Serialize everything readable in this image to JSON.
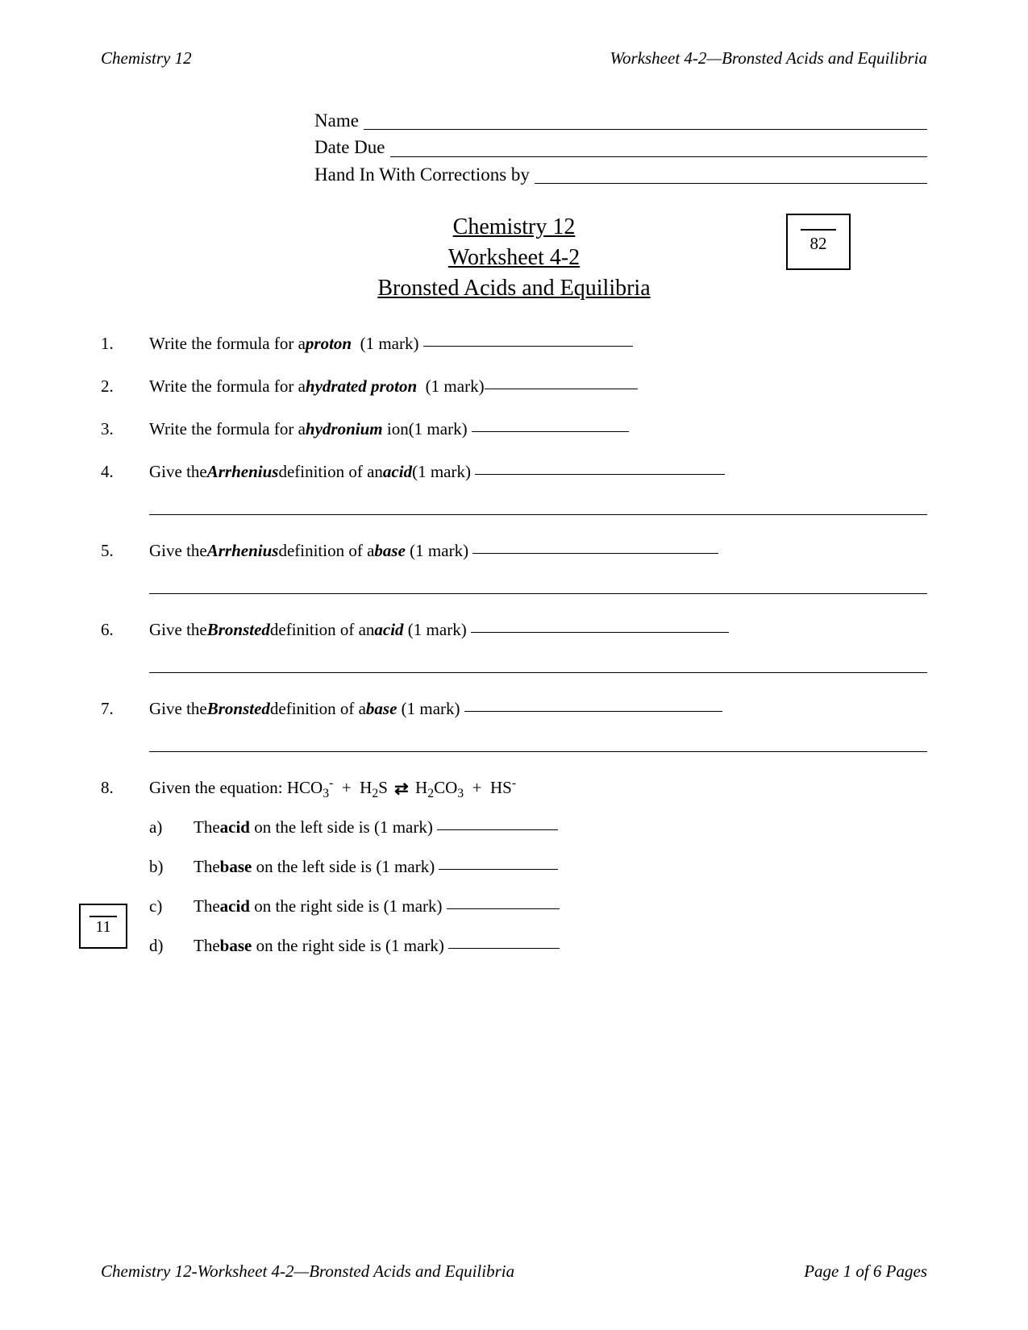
{
  "header": {
    "left": "Chemistry 12",
    "right": "Worksheet 4-2—Bronsted Acids and Equilibria"
  },
  "nameBlock": {
    "nameLabel": "Name ",
    "dueLabel": "Date Due ",
    "handInLabel": "Hand In With Corrections by "
  },
  "title": {
    "line1": "Chemistry 12",
    "line2": "Worksheet 4-2",
    "line3": "Bronsted Acids and Equilibria"
  },
  "scoreTop": {
    "denom": "82"
  },
  "scoreSide": {
    "denom": "11"
  },
  "questions": {
    "q1": {
      "num": "1.",
      "pre": "Write the formula for a ",
      "term": "proton",
      "post": "  (1 mark) ",
      "blankWidth": 260
    },
    "q2": {
      "num": "2.",
      "pre": "Write the formula for a ",
      "term": "hydrated proton",
      "post": "  (1 mark)",
      "blankWidth": 190
    },
    "q3": {
      "num": "3.",
      "pre": "Write the formula for a ",
      "term": "hydronium",
      "post": " ion(1 mark) ",
      "blankWidth": 195
    },
    "q4": {
      "num": "4.",
      "pre": "Give the ",
      "term1": "Arrhenius",
      "mid": " definition of an ",
      "term2": "acid",
      "post": "(1 mark) ",
      "blankWidth": 310
    },
    "q5": {
      "num": "5.",
      "pre": "Give the ",
      "term1": "Arrhenius",
      "mid": " definition of a ",
      "term2": "base",
      "post": " (1 mark) ",
      "blankWidth": 305
    },
    "q6": {
      "num": "6.",
      "pre": "Give the ",
      "term1": "Bronsted",
      "mid": " definition of an ",
      "term2": "acid",
      "post": " (1 mark) ",
      "blankWidth": 320
    },
    "q7": {
      "num": "7.",
      "pre": "Give the ",
      "term1": "Bronsted",
      "mid": " definition of a ",
      "term2": "base",
      "post": " (1 mark) ",
      "blankWidth": 320
    },
    "q8": {
      "num": "8.",
      "pre": "Given the equation: ",
      "a": {
        "label": "a)",
        "pre": "The ",
        "term": "acid",
        "post": " on the left side is (1 mark) ",
        "blankWidth": 150
      },
      "b": {
        "label": "b)",
        "pre": "The ",
        "term": "base",
        "post": " on the left side is (1 mark) ",
        "blankWidth": 148
      },
      "c": {
        "label": "c)",
        "pre": "The ",
        "term": "acid",
        "post": " on the right side is (1 mark) ",
        "blankWidth": 140
      },
      "d": {
        "label": "d)",
        "pre": "The ",
        "term": "base",
        "post": " on the right side is (1 mark) ",
        "blankWidth": 138
      }
    }
  },
  "footer": {
    "left": "Chemistry 12-Worksheet 4-2—Bronsted Acids and Equilibria",
    "right": "Page 1 of  6 Pages"
  }
}
